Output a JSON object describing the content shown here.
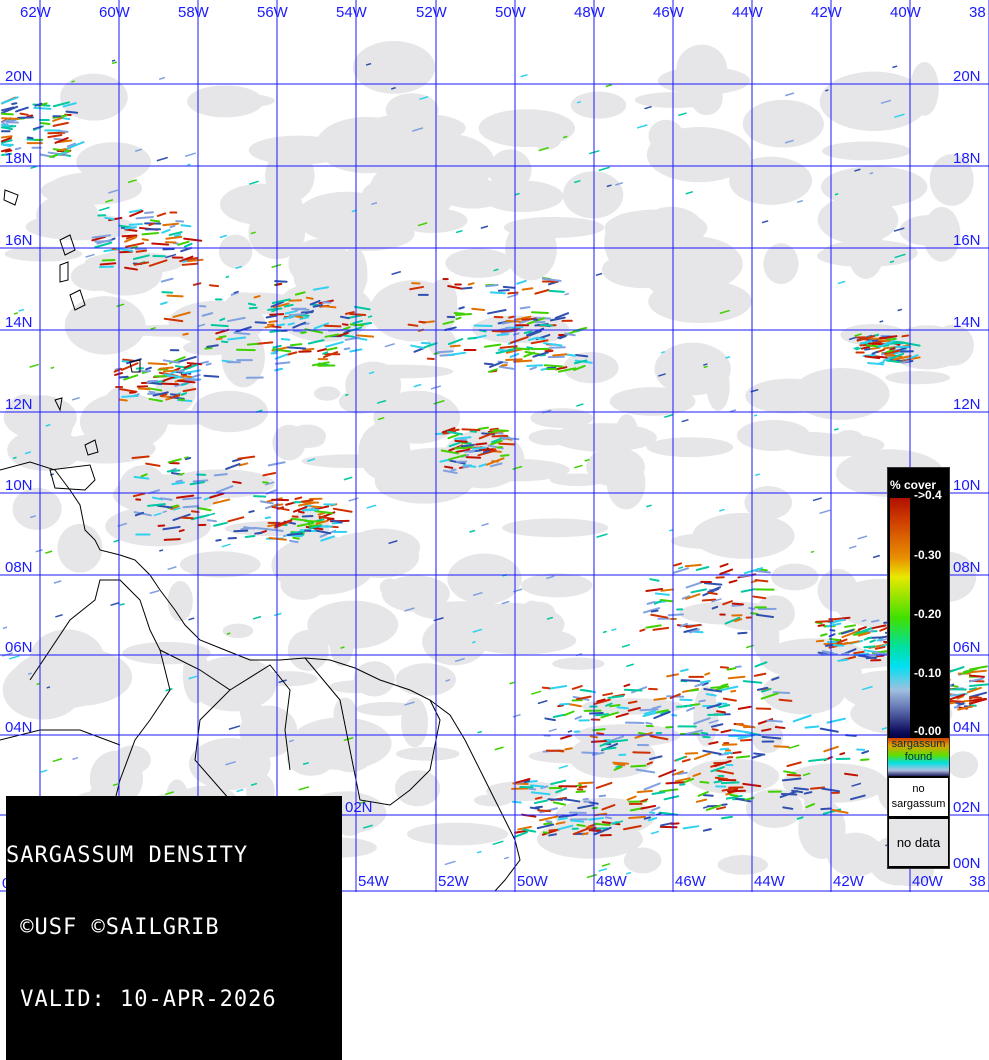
{
  "map": {
    "longitude_labels": [
      "62W",
      "60W",
      "58W",
      "56W",
      "54W",
      "52W",
      "50W",
      "48W",
      "46W",
      "44W",
      "42W",
      "40W",
      "38"
    ],
    "latitude_labels": [
      "20N",
      "18N",
      "16N",
      "14N",
      "12N",
      "10N",
      "08N",
      "06N",
      "04N",
      "02N",
      "00N"
    ],
    "grid_color": "#1a1aff",
    "no_data_color": "#e6e6e8",
    "coastline_color": "#000000"
  },
  "caption": {
    "line1": "SARGASSUM DENSITY",
    "line2": " ©USF ©SAILGRIB",
    "line3": " VALID: 10-APR-2026"
  },
  "legend": {
    "title": "% cover",
    "ticks": [
      "->0.4",
      "-0.30",
      "-0.20",
      "-0.10",
      "-0.00"
    ],
    "sargassum_found": "sargassum found",
    "no_sargassum": "no sargassum",
    "no_data": "no data"
  }
}
